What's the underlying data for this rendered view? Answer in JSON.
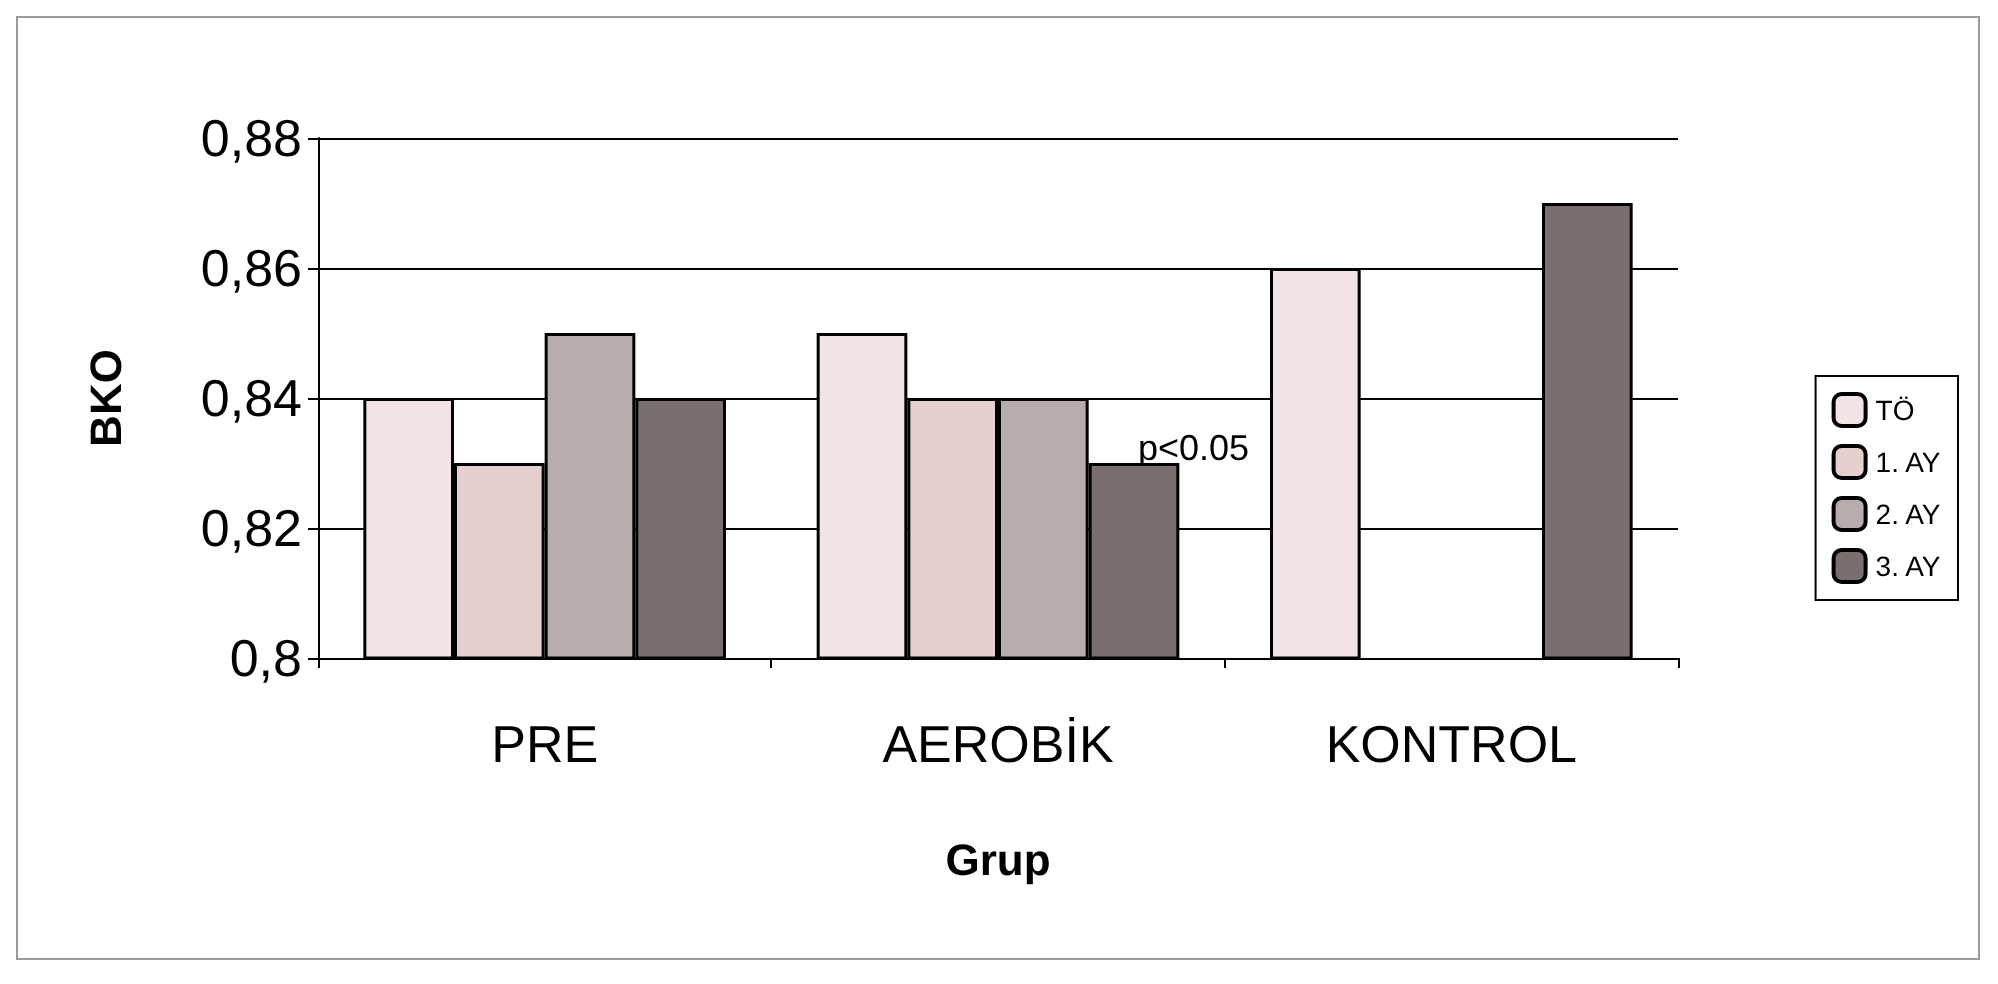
{
  "chart_data": {
    "type": "bar",
    "xlabel": "Grup",
    "ylabel": "BKO",
    "categories": [
      "PRE",
      "AEROBİK",
      "KONTROL"
    ],
    "series": [
      {
        "name": "TÖ",
        "color": "#f2e4e4",
        "values": [
          0.84,
          0.85,
          0.86
        ]
      },
      {
        "name": "1. AY",
        "color": "#e6cfcf",
        "values": [
          0.83,
          0.84,
          null
        ]
      },
      {
        "name": "2. AY",
        "color": "#b8adad",
        "values": [
          0.85,
          0.84,
          null
        ]
      },
      {
        "name": "3. AY",
        "color": "#7a6f6f",
        "values": [
          0.84,
          0.83,
          0.87
        ]
      }
    ],
    "ylim": [
      0.8,
      0.88
    ],
    "yticks": [
      {
        "value": 0.8,
        "label": "0,8"
      },
      {
        "value": 0.82,
        "label": "0,82"
      },
      {
        "value": 0.84,
        "label": "0,84"
      },
      {
        "value": 0.86,
        "label": "0,86"
      },
      {
        "value": 0.88,
        "label": "0,88"
      }
    ],
    "grid": "y",
    "legend": "right",
    "annotations": [
      "p<0.05"
    ]
  }
}
